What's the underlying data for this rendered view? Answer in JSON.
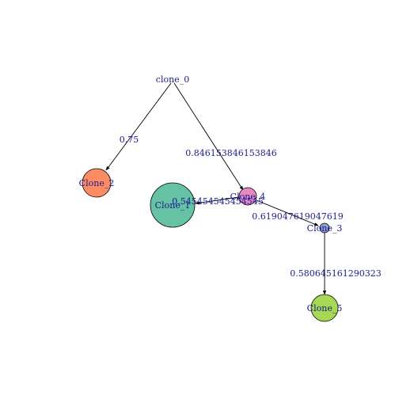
{
  "graph": {
    "nodes": [
      {
        "id": "clone_0",
        "label": "clone_0",
        "fill": null
      },
      {
        "id": "Clone_1",
        "label": "Clone_1",
        "fill": "#66c2a5"
      },
      {
        "id": "Clone_2",
        "label": "Clone_2",
        "fill": "#fc8d62"
      },
      {
        "id": "Clone_3",
        "label": "Clone_3",
        "fill": "#8da0cb"
      },
      {
        "id": "Clone_4",
        "label": "Clone_4",
        "fill": "#e78ac3"
      },
      {
        "id": "Clone_5",
        "label": "Clone_5",
        "fill": "#a6d854"
      }
    ],
    "edges": [
      {
        "from": "clone_0",
        "to": "Clone_2",
        "label": "0.75"
      },
      {
        "from": "clone_0",
        "to": "Clone_4",
        "label": "0.846153846153846"
      },
      {
        "from": "Clone_4",
        "to": "Clone_1",
        "label": "0.545454545454545"
      },
      {
        "from": "Clone_4",
        "to": "Clone_3",
        "label": "0.619047619047619"
      },
      {
        "from": "Clone_3",
        "to": "Clone_5",
        "label": "0.580645161290323"
      }
    ],
    "colors": {
      "edge": "#000000",
      "label_text": "#1a1a8c",
      "node_stroke": "#000000"
    }
  }
}
